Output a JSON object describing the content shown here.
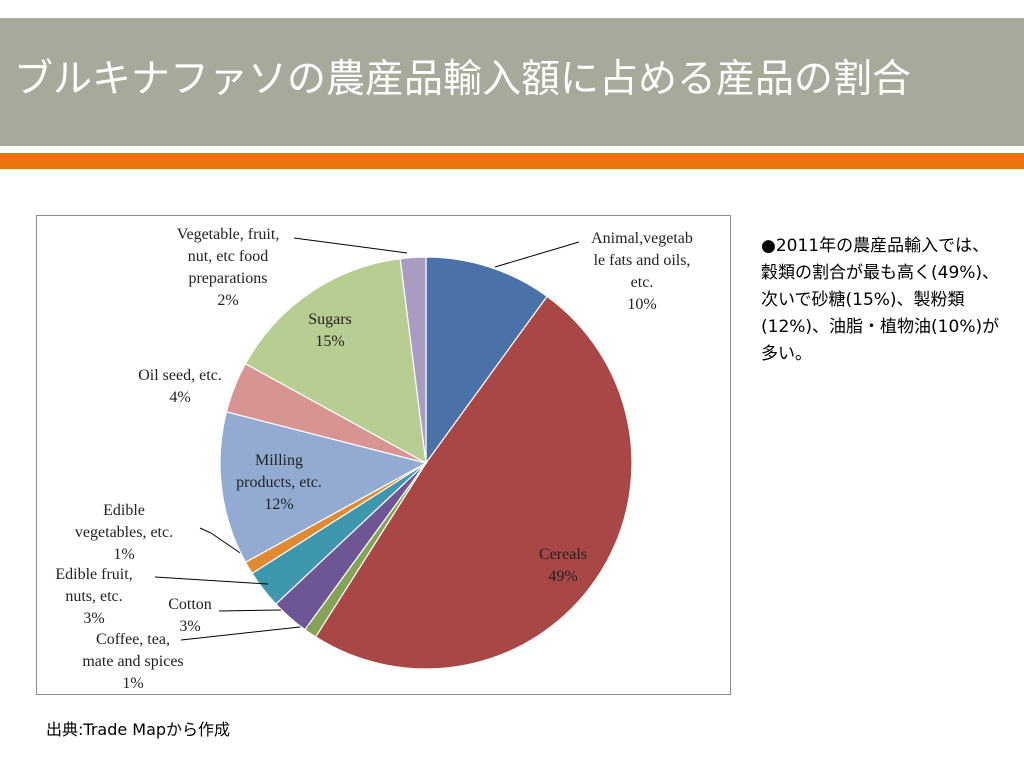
{
  "title": "ブルキナファソの農産品輸入額に占める産品の割合",
  "note": "●2011年の農産品輸入では、穀類の割合が最も高く(49%)、次いで砂糖(15%)、製粉類(12%)、油脂・植物油(10%)が多い。",
  "source": "出典:Trade Mapから作成",
  "colors": {
    "title_bar": "#a6aa9a",
    "accent": "#e8730f"
  },
  "chart_data": {
    "type": "pie",
    "unit": "%",
    "slices": [
      {
        "name": "Animal,vegetable fats and oils, etc.",
        "value": 10,
        "color": "#4a72a8",
        "label_lines": [
          "Animal,vegetab",
          "le fats and oils,",
          "etc."
        ],
        "pct": "10%"
      },
      {
        "name": "Cereals",
        "value": 49,
        "color": "#a84745",
        "label_lines": [
          "Cereals"
        ],
        "pct": "49%"
      },
      {
        "name": "Coffee, tea, mate and spices",
        "value": 1,
        "color": "#84a354",
        "label_lines": [
          "Coffee, tea,",
          "mate and spices"
        ],
        "pct": "1%"
      },
      {
        "name": "Cotton",
        "value": 3,
        "color": "#6e5594",
        "label_lines": [
          "Cotton"
        ],
        "pct": "3%"
      },
      {
        "name": "Edible fruit, nuts, etc.",
        "value": 3,
        "color": "#3f97ad",
        "label_lines": [
          "Edible fruit,",
          "nuts, etc."
        ],
        "pct": "3%"
      },
      {
        "name": "Edible vegetables, etc.",
        "value": 1,
        "color": "#e08a33",
        "label_lines": [
          "Edible",
          "vegetables, etc."
        ],
        "pct": "1%"
      },
      {
        "name": "Milling products, etc.",
        "value": 12,
        "color": "#93abd3",
        "label_lines": [
          "Milling",
          "products, etc."
        ],
        "pct": "12%"
      },
      {
        "name": "Oil seed, etc.",
        "value": 4,
        "color": "#d89492",
        "label_lines": [
          "Oil seed, etc."
        ],
        "pct": "4%"
      },
      {
        "name": "Sugars",
        "value": 15,
        "color": "#b7cd92",
        "label_lines": [
          "Sugars"
        ],
        "pct": "15%"
      },
      {
        "name": "Vegetable, fruit, nut, etc food preparations",
        "value": 2,
        "color": "#a99cc1",
        "label_lines": [
          "Vegetable, fruit,",
          "nut, etc food",
          "preparations"
        ],
        "pct": "2%"
      }
    ]
  }
}
